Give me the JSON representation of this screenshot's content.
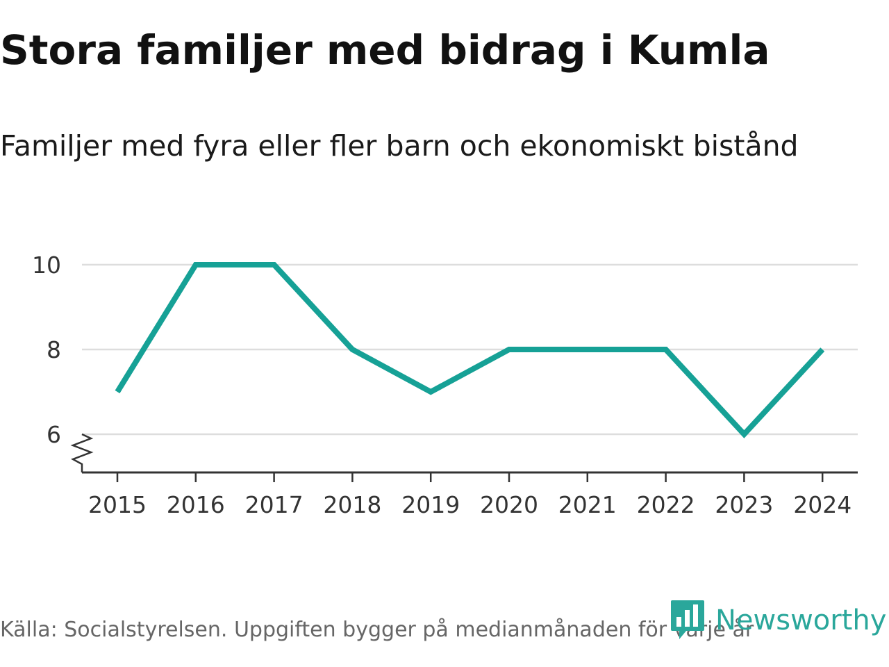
{
  "header": {
    "title": "Stora familjer med bidrag i Kumla",
    "subtitle": "Familjer med fyra eller fler barn och ekonomiskt bistånd"
  },
  "footer": {
    "source": "Källa: Socialstyrelsen. Uppgiften bygger på medianmånaden för varje år",
    "logo_text": "Newsworthy",
    "logo_icon": "newsworthy-logo-icon"
  },
  "colors": {
    "line": "#16a196",
    "grid": "#dddddd",
    "axis": "#333333",
    "brand": "#2aa79b"
  },
  "chart_data": {
    "type": "line",
    "title": "Stora familjer med bidrag i Kumla",
    "subtitle": "Familjer med fyra eller fler barn och ekonomiskt bistånd",
    "xlabel": "",
    "ylabel": "",
    "categories": [
      "2015",
      "2016",
      "2017",
      "2018",
      "2019",
      "2020",
      "2021",
      "2022",
      "2023",
      "2024"
    ],
    "series": [
      {
        "name": "Familjer med fyra eller fler barn och ekonomiskt bistånd",
        "values": [
          7,
          10,
          10,
          8,
          7,
          8,
          8,
          8,
          6,
          8
        ]
      }
    ],
    "yticks": [
      6,
      8,
      10
    ],
    "ylim": [
      5.1,
      10.3
    ],
    "grid": true,
    "axis_break": true,
    "legend": "none"
  }
}
